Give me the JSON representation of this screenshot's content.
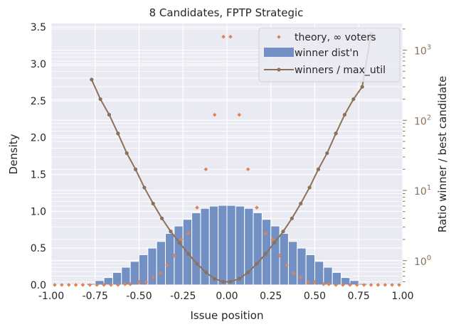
{
  "chart_data": {
    "type": "bar",
    "title": "8 Candidates, FPTP Strategic",
    "xlabel": "Issue position",
    "ylabel": "Density",
    "y2label": "Ratio winner / best candidate",
    "xlim": [
      -1.0,
      1.0
    ],
    "ylim": [
      0,
      3.55
    ],
    "y2scale": "log",
    "y2lim": [
      0.45,
      2400
    ],
    "grid": true,
    "legend_placement": "top-right",
    "xticks": [
      "-1.00",
      "-0.75",
      "-0.50",
      "-0.25",
      "0.00",
      "0.25",
      "0.50",
      "0.75",
      "1.00"
    ],
    "xtick_values": [
      -1.0,
      -0.75,
      -0.5,
      -0.25,
      0.0,
      0.25,
      0.5,
      0.75,
      1.0
    ],
    "yticks": [
      "0.0",
      "0.5",
      "1.0",
      "1.5",
      "2.0",
      "2.5",
      "3.0",
      "3.5"
    ],
    "ytick_values": [
      0.0,
      0.5,
      1.0,
      1.5,
      2.0,
      2.5,
      3.0,
      3.5
    ],
    "y2ticks": [
      {
        "base": "10",
        "exp": "0",
        "value": 1
      },
      {
        "base": "10",
        "exp": "1",
        "value": 10
      },
      {
        "base": "10",
        "exp": "2",
        "value": 100
      },
      {
        "base": "10",
        "exp": "3",
        "value": 1000
      }
    ],
    "colors": {
      "hist": "#7390c4",
      "theory": "#dd8452",
      "line": "#8c7158",
      "axes_bg": "#eaeaf2",
      "grid": "#ffffff"
    },
    "series": [
      {
        "name": "theory, ∞ voters",
        "kind": "scatter",
        "x": [
          -0.98,
          -0.94,
          -0.9,
          -0.86,
          -0.82,
          -0.78,
          -0.74,
          -0.7,
          -0.66,
          -0.62,
          -0.58,
          -0.55,
          -0.5,
          -0.46,
          -0.42,
          -0.38,
          -0.34,
          -0.3,
          -0.26,
          -0.22,
          -0.17,
          -0.12,
          -0.07,
          -0.02,
          0.02,
          0.07,
          0.12,
          0.17,
          0.22,
          0.26,
          0.3,
          0.34,
          0.38,
          0.42,
          0.46,
          0.5,
          0.55,
          0.58,
          0.62,
          0.66,
          0.7,
          0.74,
          0.78,
          0.82,
          0.86,
          0.9,
          0.94,
          0.98
        ],
        "y": [
          0.0,
          0.0,
          0.0,
          0.0,
          0.0,
          0.0,
          0.0,
          0.0,
          0.0,
          0.0,
          0.01,
          0.01,
          0.04,
          0.04,
          0.1,
          0.16,
          0.27,
          0.4,
          0.62,
          0.7,
          1.05,
          1.57,
          2.31,
          3.37,
          3.37,
          2.31,
          1.57,
          1.05,
          0.7,
          0.62,
          0.4,
          0.27,
          0.16,
          0.1,
          0.04,
          0.04,
          0.01,
          0.01,
          0.0,
          0.0,
          0.0,
          0.0,
          0.0,
          0.0,
          0.0,
          0.0,
          0.0,
          0.0
        ]
      },
      {
        "name": "winner dist'n",
        "kind": "histogram",
        "bin_edges": [
          -1.0,
          -0.95,
          -0.9,
          -0.85,
          -0.8,
          -0.75,
          -0.7,
          -0.65,
          -0.6,
          -0.55,
          -0.5,
          -0.45,
          -0.4,
          -0.35,
          -0.3,
          -0.25,
          -0.2,
          -0.15,
          -0.1,
          -0.05,
          0.0,
          0.05,
          0.1,
          0.15,
          0.2,
          0.25,
          0.3,
          0.35,
          0.4,
          0.45,
          0.5,
          0.55,
          0.6,
          0.65,
          0.7,
          0.75,
          0.8,
          0.85,
          0.9,
          0.95,
          1.0
        ],
        "values": [
          0.0,
          0.0,
          0.0,
          0.0,
          0.02,
          0.06,
          0.1,
          0.17,
          0.24,
          0.32,
          0.41,
          0.5,
          0.59,
          0.7,
          0.8,
          0.89,
          0.98,
          1.04,
          1.07,
          1.08,
          1.08,
          1.07,
          1.04,
          0.98,
          0.89,
          0.8,
          0.7,
          0.59,
          0.5,
          0.41,
          0.32,
          0.24,
          0.17,
          0.1,
          0.06,
          0.02,
          0.0,
          0.0,
          0.0,
          0.0
        ]
      },
      {
        "name": "winners / max_util",
        "kind": "line",
        "axis": "y2",
        "x": [
          -0.77,
          -0.72,
          -0.67,
          -0.62,
          -0.57,
          -0.52,
          -0.47,
          -0.42,
          -0.37,
          -0.32,
          -0.27,
          -0.22,
          -0.17,
          -0.12,
          -0.07,
          -0.02,
          0.02,
          0.07,
          0.12,
          0.17,
          0.22,
          0.27,
          0.32,
          0.37,
          0.42,
          0.47,
          0.52,
          0.57,
          0.62,
          0.67,
          0.72,
          0.77,
          0.82
        ],
        "y": [
          380,
          200,
          120,
          65,
          34,
          20,
          11,
          6.5,
          4.0,
          2.6,
          1.8,
          1.25,
          0.9,
          0.68,
          0.55,
          0.5,
          0.5,
          0.55,
          0.68,
          0.9,
          1.25,
          1.8,
          2.6,
          4.0,
          6.5,
          11,
          20,
          34,
          65,
          120,
          200,
          300,
          1700
        ]
      }
    ]
  }
}
